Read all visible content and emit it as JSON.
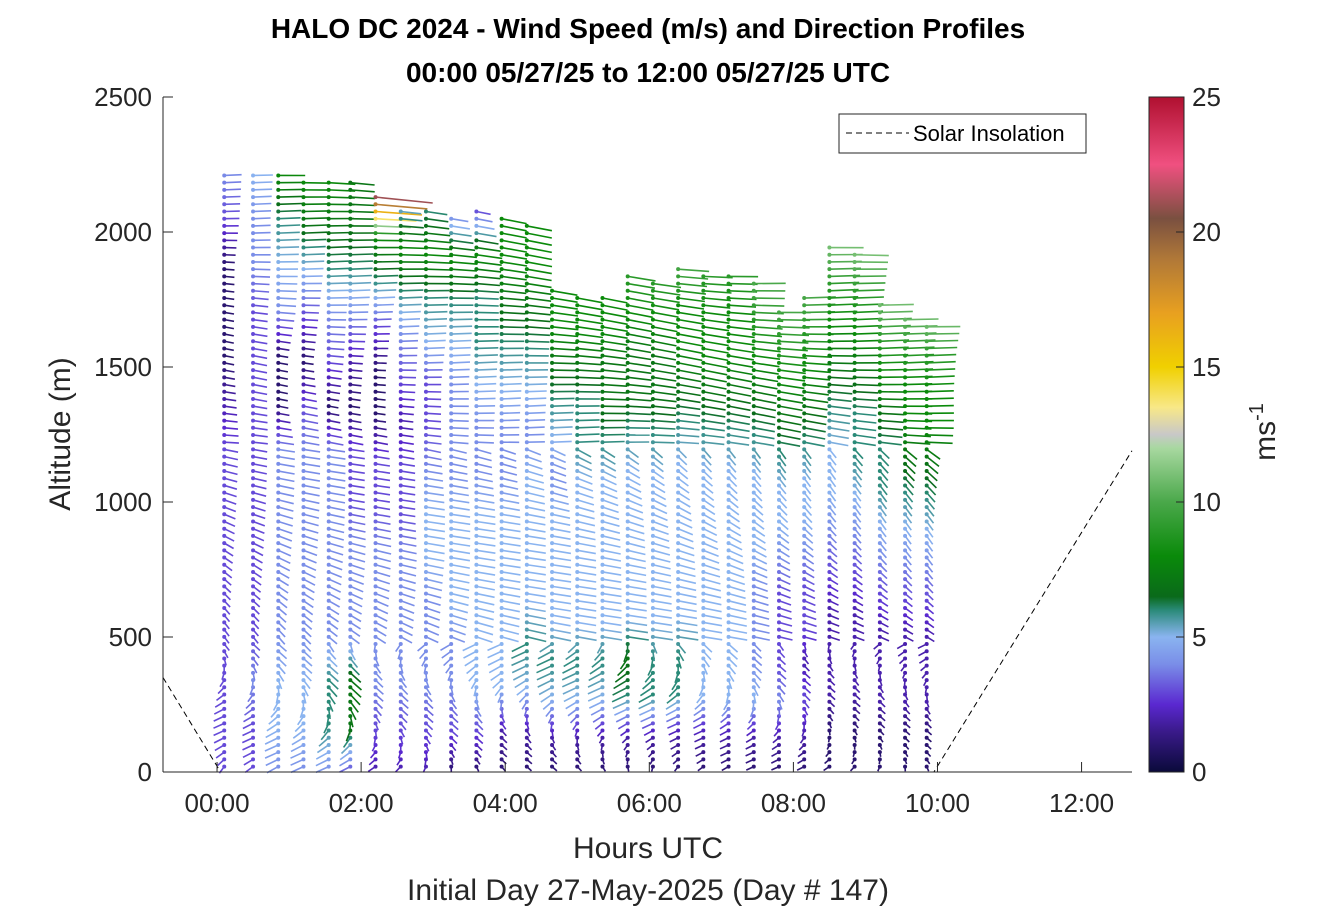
{
  "chart_data": {
    "type": "wind-barb-profile",
    "title": "HALO DC 2024 - Wind Speed (m/s) and Direction Profiles",
    "subtitle": "00:00 05/27/25 to 12:00 05/27/25  UTC",
    "xlabel": "Hours UTC",
    "xlabel2": "Initial Day 27-May-2025 (Day # 147)",
    "ylabel": "Altitude (m)",
    "xlim_hours": [
      -0.75,
      12.7
    ],
    "ylim": [
      0,
      2500
    ],
    "x_ticks": [
      {
        "value": 0,
        "label": "00:00"
      },
      {
        "value": 2,
        "label": "02:00"
      },
      {
        "value": 4,
        "label": "04:00"
      },
      {
        "value": 6,
        "label": "06:00"
      },
      {
        "value": 8,
        "label": "08:00"
      },
      {
        "value": 10,
        "label": "10:00"
      },
      {
        "value": 12,
        "label": "12:00"
      }
    ],
    "y_ticks": [
      {
        "value": 0,
        "label": "0"
      },
      {
        "value": 500,
        "label": "500"
      },
      {
        "value": 1000,
        "label": "1000"
      },
      {
        "value": 1500,
        "label": "1500"
      },
      {
        "value": 2000,
        "label": "2000"
      },
      {
        "value": 2500,
        "label": "2500"
      }
    ],
    "colorbar": {
      "label": "ms",
      "label_superscript": "-1",
      "range": [
        0,
        25
      ],
      "ticks": [
        {
          "value": 0,
          "label": "0"
        },
        {
          "value": 5,
          "label": "5"
        },
        {
          "value": 10,
          "label": "10"
        },
        {
          "value": 15,
          "label": "15"
        },
        {
          "value": 20,
          "label": "20"
        },
        {
          "value": 25,
          "label": "25"
        }
      ],
      "colormap": [
        {
          "v": 0.0,
          "c": "#0a0a3a"
        },
        {
          "v": 1.5,
          "c": "#3a1a8a"
        },
        {
          "v": 2.5,
          "c": "#5a28d0"
        },
        {
          "v": 4.0,
          "c": "#7a8ee8"
        },
        {
          "v": 5.0,
          "c": "#8ab4f0"
        },
        {
          "v": 6.0,
          "c": "#2a8a78"
        },
        {
          "v": 6.5,
          "c": "#0a6a1a"
        },
        {
          "v": 8.0,
          "c": "#0a8a0a"
        },
        {
          "v": 10.0,
          "c": "#4aa84a"
        },
        {
          "v": 12.0,
          "c": "#a8d8a0"
        },
        {
          "v": 12.5,
          "c": "#c8c8c8"
        },
        {
          "v": 13.5,
          "c": "#f8e888"
        },
        {
          "v": 15.0,
          "c": "#f0d000"
        },
        {
          "v": 17.0,
          "c": "#e8a020"
        },
        {
          "v": 19.0,
          "c": "#b07838"
        },
        {
          "v": 20.5,
          "c": "#7a5040"
        },
        {
          "v": 22.5,
          "c": "#f05080"
        },
        {
          "v": 25.0,
          "c": "#b01030"
        }
      ]
    },
    "legend": {
      "location": "top-right",
      "entries": [
        {
          "label": "Solar Insolation",
          "style": "dashed",
          "color": "#000000"
        }
      ]
    },
    "solar_insolation": {
      "x_hours": [
        -0.75,
        0.05,
        9.95,
        12.7
      ],
      "y": [
        350,
        0,
        0,
        1190
      ]
    },
    "wind_profiles": [
      {
        "time": 0.1,
        "top": 2220,
        "speeds": [
          3,
          3,
          3,
          3,
          3,
          3,
          3,
          3,
          2,
          1,
          1,
          1,
          3,
          4
        ]
      },
      {
        "time": 0.5,
        "top": 2220,
        "speeds": [
          3,
          3,
          4,
          3,
          3,
          3,
          3,
          3,
          3,
          3,
          3,
          4,
          4,
          5
        ]
      },
      {
        "time": 0.85,
        "top": 2220,
        "speeds": [
          4,
          5,
          5,
          4,
          4,
          4,
          4,
          4,
          1,
          1,
          4,
          5,
          6,
          8
        ]
      },
      {
        "time": 1.2,
        "top": 2200,
        "speeds": [
          4,
          5,
          5,
          4,
          4,
          4,
          4,
          4,
          3,
          1,
          3,
          5,
          7,
          8
        ]
      },
      {
        "time": 1.55,
        "top": 2200,
        "speeds": [
          4,
          6,
          6,
          4,
          4,
          4,
          4,
          4,
          1,
          3,
          4,
          6,
          7,
          8
        ]
      },
      {
        "time": 1.85,
        "top": 2200,
        "speeds": [
          3,
          7,
          7,
          4,
          4,
          4,
          3,
          3,
          1,
          2,
          4,
          6,
          7,
          7
        ]
      },
      {
        "time": 2.2,
        "top": 2150,
        "speeds": [
          2,
          3,
          4,
          4,
          4,
          4,
          3,
          3,
          1,
          1,
          3,
          6,
          8,
          23
        ]
      },
      {
        "time": 2.55,
        "top": 2100,
        "speeds": [
          2,
          3,
          4,
          4,
          4,
          4,
          3,
          3,
          2,
          3,
          4,
          6,
          8,
          5
        ]
      },
      {
        "time": 2.9,
        "top": 2080,
        "speeds": [
          2,
          3,
          4,
          4,
          4,
          5,
          5,
          4,
          3,
          3,
          5,
          6,
          8,
          6
        ]
      },
      {
        "time": 3.25,
        "top": 2060,
        "speeds": [
          1,
          3,
          4,
          4,
          5,
          5,
          5,
          4,
          4,
          4,
          5,
          6,
          8,
          4
        ]
      },
      {
        "time": 3.6,
        "top": 2080,
        "speeds": [
          1,
          3,
          5,
          5,
          5,
          5,
          5,
          4,
          4,
          5,
          6,
          6,
          8,
          3
        ]
      },
      {
        "time": 3.95,
        "top": 2060,
        "speeds": [
          1,
          2,
          5,
          5,
          5,
          5,
          5,
          4,
          4,
          5,
          6,
          7,
          8,
          8
        ]
      },
      {
        "time": 4.3,
        "top": 2040,
        "speeds": [
          1,
          2,
          5,
          6,
          5,
          5,
          5,
          5,
          4,
          5,
          6,
          7,
          8,
          8
        ]
      },
      {
        "time": 4.65,
        "top": 1790,
        "speeds": [
          1,
          2,
          5,
          6,
          5,
          5,
          5,
          5,
          4,
          5,
          6,
          7,
          8,
          8
        ]
      },
      {
        "time": 5.0,
        "top": 1780,
        "speeds": [
          1,
          2,
          5,
          6,
          5,
          5,
          5,
          5,
          5,
          6,
          6,
          7,
          8,
          8
        ]
      },
      {
        "time": 5.35,
        "top": 1780,
        "speeds": [
          1,
          2,
          5,
          6,
          5,
          5,
          5,
          5,
          5,
          6,
          7,
          7,
          8,
          8
        ]
      },
      {
        "time": 5.7,
        "top": 1840,
        "speeds": [
          1,
          2,
          6,
          7,
          5,
          5,
          5,
          5,
          5,
          6,
          7,
          7,
          8,
          9
        ]
      },
      {
        "time": 6.05,
        "top": 1820,
        "speeds": [
          1,
          2,
          6,
          6,
          5,
          5,
          5,
          5,
          5,
          6,
          7,
          7,
          8,
          9
        ]
      },
      {
        "time": 6.4,
        "top": 1880,
        "speeds": [
          1,
          2,
          6,
          6,
          5,
          5,
          5,
          5,
          5,
          6,
          7,
          8,
          8,
          10
        ]
      },
      {
        "time": 6.75,
        "top": 1840,
        "speeds": [
          1,
          2,
          5,
          5,
          5,
          5,
          5,
          5,
          5,
          6,
          7,
          8,
          8,
          9
        ]
      },
      {
        "time": 7.1,
        "top": 1840,
        "speeds": [
          1,
          2,
          5,
          5,
          5,
          5,
          5,
          5,
          5,
          6,
          7,
          8,
          8,
          9
        ]
      },
      {
        "time": 7.45,
        "top": 1810,
        "speeds": [
          1,
          2,
          5,
          4,
          4,
          4,
          5,
          5,
          5,
          6,
          7,
          8,
          9,
          10
        ]
      },
      {
        "time": 7.8,
        "top": 1720,
        "speeds": [
          1,
          2,
          4,
          3,
          3,
          3,
          4,
          5,
          5,
          6,
          7,
          8,
          9,
          10
        ]
      },
      {
        "time": 8.15,
        "top": 1770,
        "speeds": [
          1,
          2,
          3,
          2,
          3,
          3,
          4,
          5,
          5,
          6,
          7,
          8,
          9,
          10
        ]
      },
      {
        "time": 8.5,
        "top": 1950,
        "speeds": [
          1,
          1,
          2,
          2,
          2,
          3,
          4,
          5,
          5,
          6,
          7,
          8,
          9,
          11
        ]
      },
      {
        "time": 8.85,
        "top": 1920,
        "speeds": [
          1,
          1,
          2,
          2,
          2,
          3,
          4,
          5,
          6,
          6,
          7,
          8,
          9,
          11
        ]
      },
      {
        "time": 9.2,
        "top": 1740,
        "speeds": [
          1,
          1,
          2,
          2,
          2,
          3,
          4,
          5,
          6,
          6,
          7,
          8,
          9,
          11
        ]
      },
      {
        "time": 9.55,
        "top": 1700,
        "speeds": [
          1,
          1,
          2,
          2,
          2,
          3,
          4,
          5,
          6,
          7,
          8,
          8,
          9,
          11
        ]
      },
      {
        "time": 9.85,
        "top": 1670,
        "speeds": [
          1,
          1,
          2,
          2,
          2,
          3,
          4,
          5,
          6,
          7,
          8,
          8,
          9,
          11
        ]
      }
    ]
  }
}
